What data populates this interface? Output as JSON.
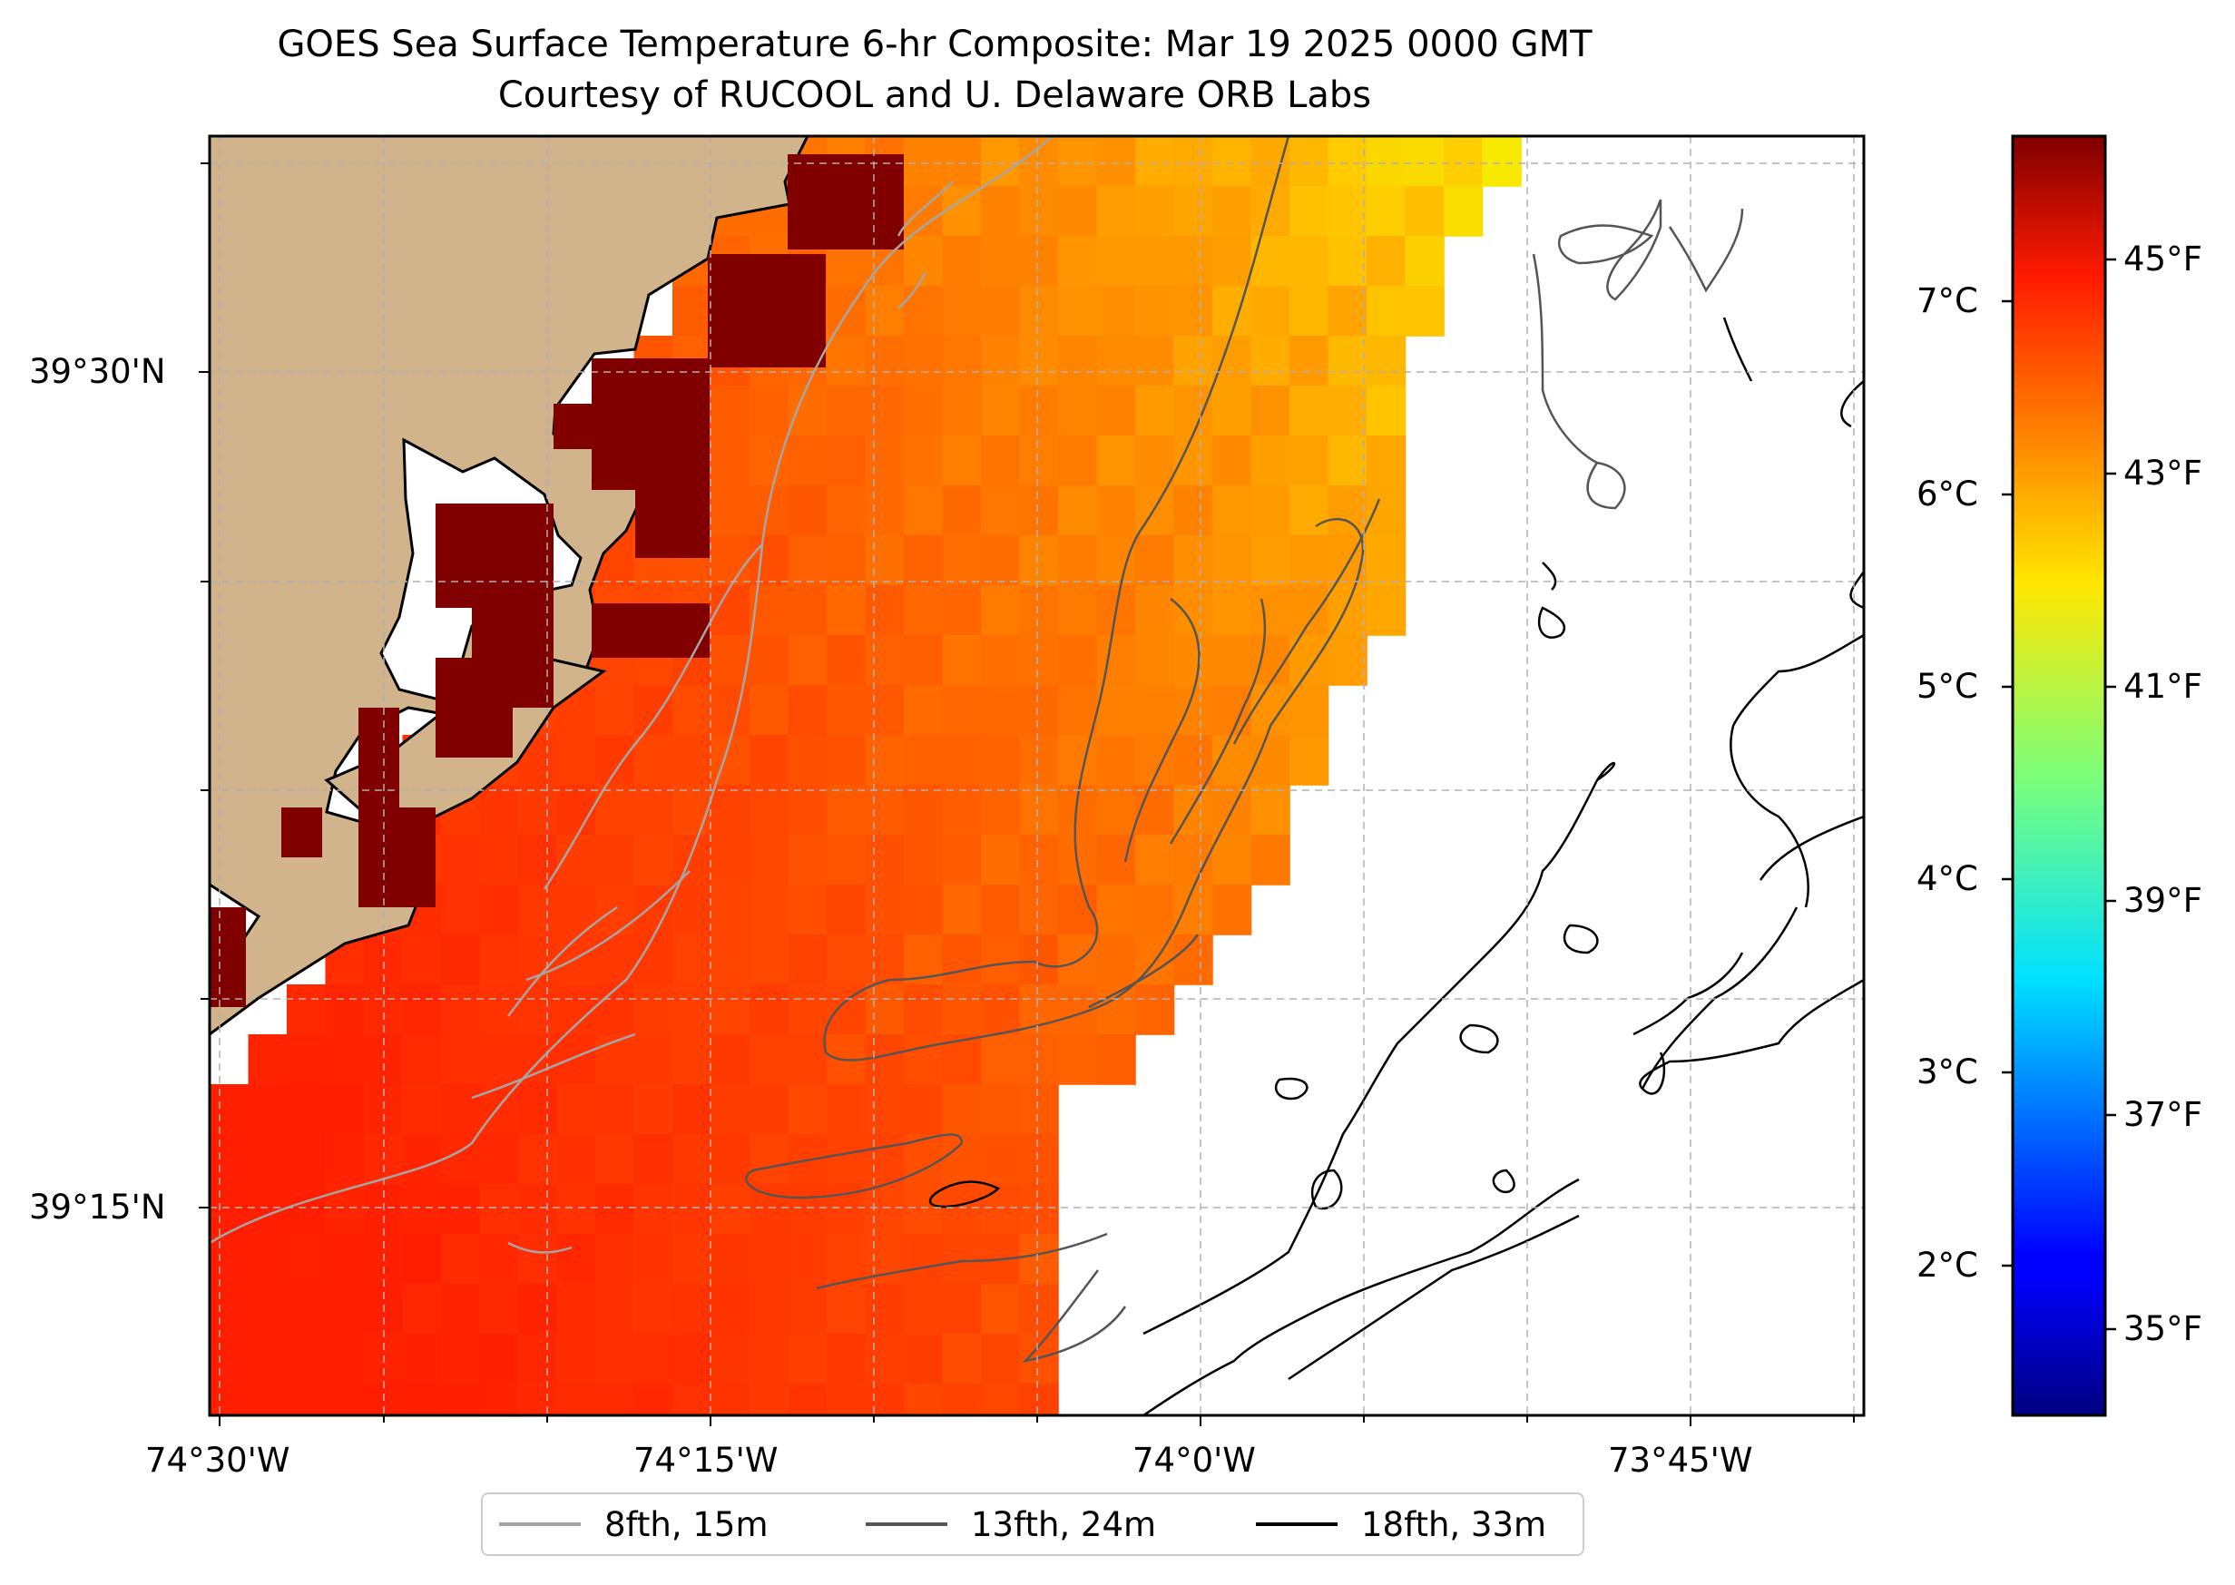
{
  "title": "GOES Sea Surface Temperature 6-hr Composite: Mar 19 2025 0000 GMT",
  "subtitle": "Courtesy of RUCOOL and U. Delaware ORB Labs",
  "axes": {
    "lon_ticks": [
      "74°30'W",
      "74°15'W",
      "74°0'W",
      "73°45'W"
    ],
    "lat_ticks": [
      "39°30'N",
      "39°15'N"
    ]
  },
  "colorbar": {
    "colormap": "jet",
    "celsius_ticks": [
      "7°C",
      "6°C",
      "5°C",
      "4°C",
      "3°C",
      "2°C"
    ],
    "fahrenheit_ticks": [
      "45°F",
      "43°F",
      "41°F",
      "39°F",
      "37°F",
      "35°F"
    ]
  },
  "legend": {
    "items": [
      {
        "label": "8fth, 15m",
        "color": "#a6a6a6"
      },
      {
        "label": "13fth, 24m",
        "color": "#555555"
      },
      {
        "label": "18fth, 33m",
        "color": "#000000"
      }
    ]
  },
  "colors": {
    "land": "#d2b48c",
    "grid": "#b0b0b0"
  }
}
